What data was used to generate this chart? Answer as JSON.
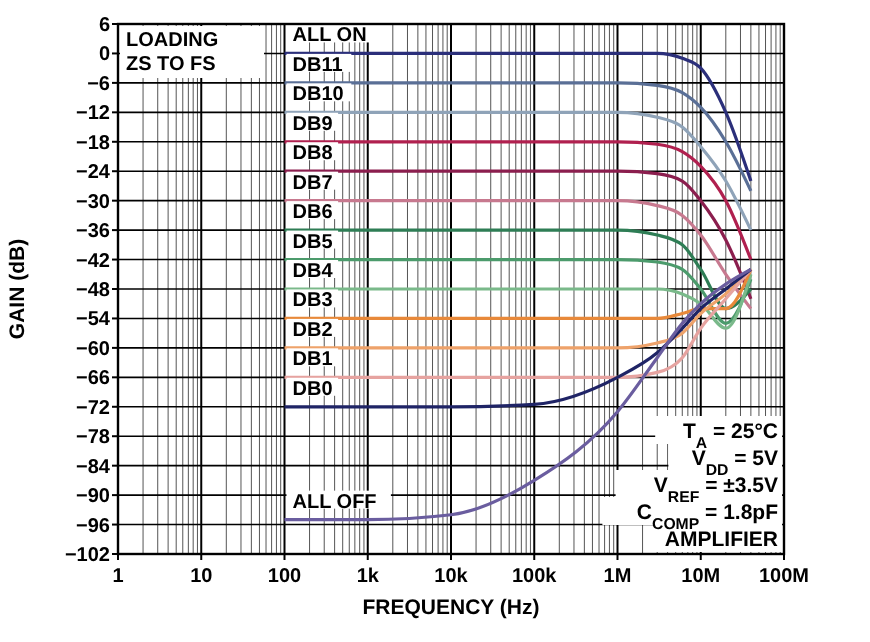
{
  "chart_data": {
    "type": "line",
    "xlabel": "FREQUENCY (Hz)",
    "ylabel": "GAIN (dB)",
    "log": "x",
    "grid": true,
    "legend": false,
    "line_style": "solid",
    "marker": "none",
    "xlim": [
      1,
      100000000
    ],
    "xticks": [
      1,
      10,
      100,
      {
        "value": 1000,
        "label": "1k"
      },
      {
        "value": 10000,
        "label": "10k"
      },
      {
        "value": 100000,
        "label": "100k"
      },
      {
        "value": 1000000,
        "label": "1M"
      },
      {
        "value": 10000000,
        "label": "10M"
      },
      {
        "value": 100000000,
        "label": "100M"
      }
    ],
    "ylim": [
      -102,
      6
    ],
    "yticks": [
      6,
      0,
      -6,
      -12,
      -18,
      -24,
      -30,
      -36,
      -42,
      -48,
      -54,
      -60,
      -66,
      -72,
      -78,
      -84,
      -90,
      -96,
      -102
    ],
    "x": [
      100,
      1000,
      10000,
      100000,
      1000000,
      3000000,
      6000000,
      10000000,
      20000000,
      40000000
    ],
    "series": [
      {
        "name": "ALL ON",
        "color": "#2b2f7a",
        "values": [
          0,
          0,
          0,
          0,
          0,
          0,
          -1,
          -3,
          -12,
          -26
        ]
      },
      {
        "name": "DB11",
        "color": "#5a6f96",
        "values": [
          -6,
          -6,
          -6,
          -6,
          -6,
          -6.5,
          -8,
          -11,
          -18,
          -28
        ]
      },
      {
        "name": "DB10",
        "color": "#8fa3b8",
        "values": [
          -12,
          -12,
          -12,
          -12,
          -12,
          -13,
          -15,
          -19,
          -26,
          -36
        ]
      },
      {
        "name": "DB9",
        "color": "#b0204f",
        "values": [
          -18,
          -18,
          -18,
          -18,
          -18,
          -18.5,
          -20,
          -23,
          -30,
          -42
        ]
      },
      {
        "name": "DB8",
        "color": "#8b1e4e",
        "values": [
          -24,
          -24,
          -24,
          -24,
          -24,
          -24.5,
          -26,
          -30,
          -38,
          -50
        ]
      },
      {
        "name": "DB7",
        "color": "#c7798f",
        "values": [
          -30,
          -30,
          -30,
          -30,
          -30,
          -31,
          -33,
          -37,
          -45,
          -52
        ]
      },
      {
        "name": "DB6",
        "color": "#2e7d55",
        "values": [
          -36,
          -36,
          -36,
          -36,
          -36,
          -37,
          -39,
          -44,
          -52,
          -48
        ]
      },
      {
        "name": "DB5",
        "color": "#4c9b6c",
        "values": [
          -42,
          -42,
          -42,
          -42,
          -42,
          -42.5,
          -44,
          -48,
          -55,
          -46
        ]
      },
      {
        "name": "DB4",
        "color": "#7ab98a",
        "values": [
          -48,
          -48,
          -48,
          -48,
          -48,
          -48,
          -49,
          -51,
          -56,
          -45
        ]
      },
      {
        "name": "DB3",
        "color": "#e8893a",
        "values": [
          -54,
          -54,
          -54,
          -54,
          -54,
          -54,
          -53,
          -52,
          -52,
          -44
        ]
      },
      {
        "name": "DB2",
        "color": "#eea26a",
        "values": [
          -60,
          -60,
          -60,
          -60,
          -60,
          -59,
          -57,
          -53,
          -49,
          -44
        ]
      },
      {
        "name": "DB1",
        "color": "#e6a3a0",
        "values": [
          -66,
          -66,
          -66,
          -66,
          -66,
          -65,
          -62,
          -56,
          -50,
          -44
        ]
      },
      {
        "name": "DB0",
        "color": "#1f2466",
        "values": [
          -72,
          -72,
          -72,
          -71.5,
          -66,
          -61,
          -56,
          -52,
          -48,
          -44
        ]
      },
      {
        "name": "ALL OFF",
        "color": "#6a5d9f",
        "values": [
          -95,
          -95,
          -94,
          -87,
          -73,
          -62,
          -55,
          -51,
          -47,
          -44
        ]
      }
    ],
    "annotations": [
      "LOADING\nZS TO FS",
      "T$_{A}$ = 25°C",
      "V$_{DD}$ = 5V",
      "V$_{REF}$ = ±3.5V",
      "C$_{COMP}$ = 1.8pF",
      "AMPLIFIER"
    ]
  }
}
